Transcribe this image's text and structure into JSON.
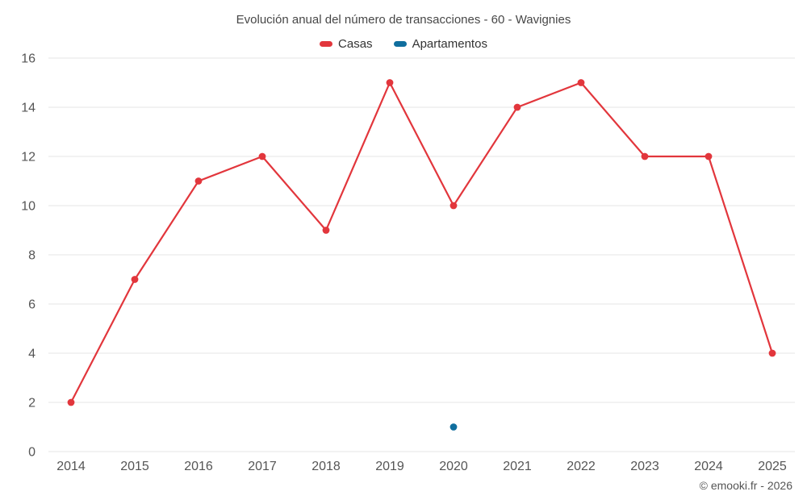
{
  "chart_data": {
    "type": "line",
    "title": "Evolución anual del número de transacciones - 60 - Wavignies",
    "categories": [
      "2014",
      "2015",
      "2016",
      "2017",
      "2018",
      "2019",
      "2020",
      "2021",
      "2022",
      "2023",
      "2024",
      "2025"
    ],
    "series": [
      {
        "name": "Casas",
        "color": "#e2363c",
        "values": [
          2,
          7,
          11,
          12,
          9,
          15,
          10,
          14,
          15,
          12,
          12,
          4
        ]
      },
      {
        "name": "Apartamentos",
        "color": "#106e9e",
        "values": [
          null,
          null,
          null,
          null,
          null,
          null,
          1,
          null,
          null,
          null,
          null,
          null
        ]
      }
    ],
    "ylim": [
      0,
      16
    ],
    "ytick_step": 2,
    "xlabel": "",
    "ylabel": "",
    "grid": true,
    "legend_position": "top",
    "footer": "© emooki.fr - 2026"
  }
}
